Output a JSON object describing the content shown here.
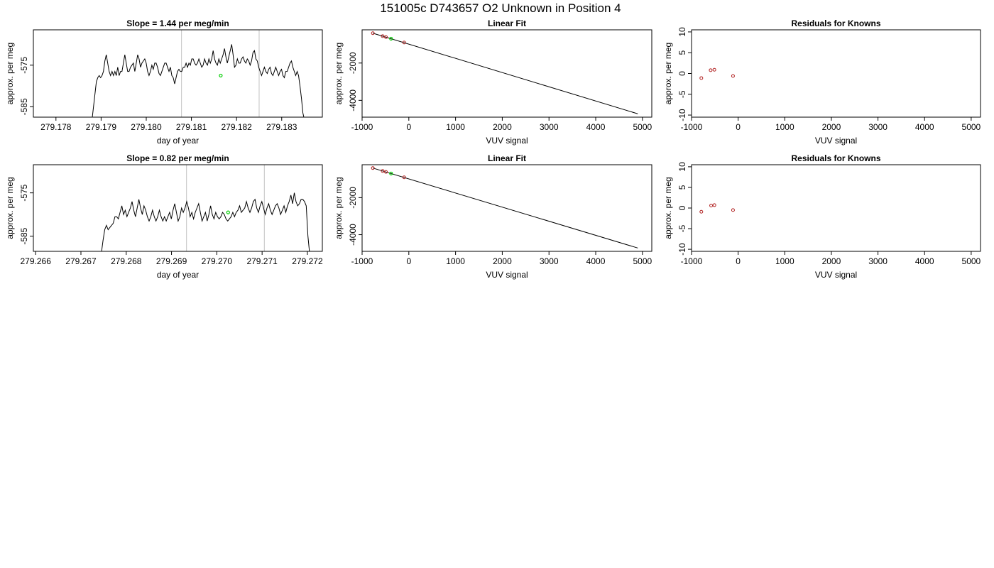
{
  "figure": {
    "title": "151005c      D743657   O2 Unknown in Position  4"
  },
  "colors": {
    "trace": "#000000",
    "marker_green": "#00cc00",
    "known_points": "#b22222",
    "cursor_lines": "#cccccc"
  },
  "chart_data": [
    {
      "type": "line",
      "title": "Slope =  1.44  per meg/min",
      "xlabel": "day of year",
      "ylabel": "approx. per meg",
      "xlim": [
        279.1775,
        279.1839
      ],
      "ylim": [
        -587.5,
        -566.5
      ],
      "xticks": [
        "279.178",
        "279.179",
        "279.180",
        "279.181",
        "279.182",
        "279.183"
      ],
      "xtick_values": [
        279.178,
        279.179,
        279.18,
        279.181,
        279.182,
        279.183
      ],
      "yticks": [
        "-575",
        "-585"
      ],
      "ytick_values": [
        -575,
        -585
      ],
      "x_start": 279.1788,
      "x_end": 279.1835,
      "y": [
        -588,
        -585,
        -582,
        -579,
        -578,
        -577.5,
        -578,
        -577.5,
        -576.5,
        -574,
        -572.5,
        -574.5,
        -576.5,
        -577.5,
        -576.5,
        -577.5,
        -576.5,
        -577.5,
        -575.5,
        -577.5,
        -576.5,
        -576.5,
        -574.5,
        -572.5,
        -574.5,
        -576.5,
        -576.5,
        -575.5,
        -575,
        -574.5,
        -576.5,
        -574.5,
        -572.5,
        -573.5,
        -575.5,
        -574.5,
        -574,
        -573.5,
        -574.5,
        -576.5,
        -577.5,
        -576.5,
        -575,
        -576,
        -574.5,
        -574.5,
        -575.5,
        -577,
        -577.5,
        -576.5,
        -575.5,
        -574.5,
        -574.5,
        -575.5,
        -576.5,
        -575.5,
        -577.5,
        -578,
        -579.5,
        -578,
        -576.5,
        -576,
        -576.5,
        -576.5,
        -575.5,
        -575.5,
        -574.5,
        -575.5,
        -574.5,
        -575,
        -573.5,
        -573.5,
        -574.5,
        -575,
        -574.5,
        -573.5,
        -574.5,
        -575.5,
        -575,
        -573.5,
        -574.5,
        -575,
        -573.5,
        -574.5,
        -573.5,
        -571.5,
        -573.5,
        -574.5,
        -575,
        -573.5,
        -574.5,
        -573.5,
        -572.5,
        -571,
        -573,
        -574.5,
        -573,
        -571.5,
        -570,
        -572.5,
        -575.5,
        -575,
        -573.5,
        -574.5,
        -574.5,
        -573.5,
        -573,
        -574,
        -574.5,
        -573.5,
        -574,
        -575,
        -574,
        -572,
        -571.5,
        -573.5,
        -574,
        -575.5,
        -576.5,
        -577.5,
        -576.5,
        -575.5,
        -576.5,
        -577,
        -576,
        -575.5,
        -577,
        -577.5,
        -576.5,
        -575.5,
        -576.5,
        -577.5,
        -576.5,
        -576,
        -577.5,
        -578,
        -576.5,
        -576.5,
        -575.5,
        -574.5,
        -574,
        -575.5,
        -576.5,
        -577.5,
        -576.5,
        -577.5,
        -580,
        -583,
        -586.5,
        -588
      ],
      "vlines": [
        279.18078,
        279.1825
      ],
      "marker": {
        "x": 279.18165,
        "y": -577.5
      }
    },
    {
      "type": "scatter",
      "title": "Linear Fit",
      "xlabel": "VUV signal",
      "ylabel": "approx. per meg",
      "xlim": [
        -1000,
        5200
      ],
      "ylim": [
        -4900,
        -220
      ],
      "xticks": [
        "-1000",
        "0",
        "1000",
        "2000",
        "3000",
        "4000",
        "5000"
      ],
      "xtick_values": [
        -1000,
        0,
        1000,
        2000,
        3000,
        4000,
        5000
      ],
      "yticks": [
        "-2000",
        "-4000"
      ],
      "ytick_values": [
        -2000,
        -4000
      ],
      "knowns": [
        {
          "x": -770,
          "y": -400
        },
        {
          "x": -560,
          "y": -558
        },
        {
          "x": -490,
          "y": -610
        },
        {
          "x": -100,
          "y": -900
        }
      ],
      "unknown": {
        "x": -380,
        "y": -695
      },
      "fit_line": [
        {
          "x": -770,
          "y": -400
        },
        {
          "x": 4900,
          "y": -4720
        }
      ]
    },
    {
      "type": "scatter",
      "title": "Residuals for Knowns",
      "xlabel": "VUV signal",
      "ylabel": "approx. per meg",
      "xlim": [
        -1000,
        5200
      ],
      "ylim": [
        -10.5,
        10.5
      ],
      "xticks": [
        "-1000",
        "0",
        "1000",
        "2000",
        "3000",
        "4000",
        "5000"
      ],
      "xtick_values": [
        -1000,
        0,
        1000,
        2000,
        3000,
        4000,
        5000
      ],
      "yticks": [
        "10",
        "5",
        "0",
        "-5",
        "-10"
      ],
      "ytick_values": [
        10,
        5,
        0,
        -5,
        -10
      ],
      "points": [
        {
          "x": -790,
          "y": -1.1
        },
        {
          "x": -590,
          "y": 0.8
        },
        {
          "x": -510,
          "y": 0.9
        },
        {
          "x": -110,
          "y": -0.6
        }
      ]
    },
    {
      "type": "line",
      "title": "Slope =  0.82  per meg/min",
      "xlabel": "day of year",
      "ylabel": "approx. per meg",
      "xlim": [
        279.26595,
        279.27233
      ],
      "ylim": [
        -588.5,
        -568.5
      ],
      "xticks": [
        "279.266",
        "279.267",
        "279.268",
        "279.269",
        "279.270",
        "279.271",
        "279.272"
      ],
      "xtick_values": [
        279.266,
        279.267,
        279.268,
        279.269,
        279.27,
        279.271,
        279.272
      ],
      "yticks": [
        "-575",
        "-585"
      ],
      "ytick_values": [
        -575,
        -585
      ],
      "x_start": 279.26745,
      "x_end": 279.27205,
      "y": [
        -589,
        -586,
        -583.5,
        -582.5,
        -583.5,
        -583,
        -582.5,
        -582,
        -580.5,
        -580.5,
        -581,
        -579.5,
        -578,
        -580,
        -579,
        -580.5,
        -579.5,
        -578.5,
        -577,
        -579,
        -580.5,
        -578.5,
        -576.5,
        -578.5,
        -580,
        -578,
        -579,
        -580.5,
        -581.5,
        -580.5,
        -579,
        -580.5,
        -581.5,
        -580.5,
        -579,
        -580.5,
        -581.5,
        -580.5,
        -581.5,
        -580.5,
        -579.5,
        -581,
        -579,
        -577.5,
        -579.5,
        -581.5,
        -580.5,
        -578.5,
        -579.5,
        -578.5,
        -577,
        -578.5,
        -580.5,
        -579.5,
        -581,
        -579.5,
        -578.5,
        -577.5,
        -579.5,
        -581.5,
        -580.5,
        -579.5,
        -581.5,
        -580,
        -578,
        -580,
        -581,
        -579.5,
        -580.5,
        -581,
        -580.5,
        -579.5,
        -580,
        -581,
        -581.5,
        -581,
        -580.5,
        -579.5,
        -580.5,
        -579.5,
        -579,
        -578,
        -579.5,
        -579,
        -578.5,
        -577,
        -578.5,
        -579.5,
        -578.5,
        -577,
        -576.5,
        -578.5,
        -579.5,
        -578,
        -577,
        -578.5,
        -580,
        -578.5,
        -577.5,
        -579,
        -580,
        -579,
        -578,
        -577.5,
        -578.5,
        -580,
        -579,
        -578,
        -579.5,
        -578,
        -577,
        -575.5,
        -577.5,
        -575,
        -577,
        -578,
        -577.5,
        -576.5,
        -576.5,
        -577,
        -578,
        -585,
        -589
      ],
      "vlines": [
        279.26933,
        279.27105
      ],
      "marker": {
        "x": 279.27025,
        "y": -579.5
      }
    },
    {
      "type": "scatter",
      "title": "Linear Fit",
      "xlabel": "VUV signal",
      "ylabel": "approx. per meg",
      "xlim": [
        -1000,
        5200
      ],
      "ylim": [
        -4900,
        -220
      ],
      "xticks": [
        "-1000",
        "0",
        "1000",
        "2000",
        "3000",
        "4000",
        "5000"
      ],
      "xtick_values": [
        -1000,
        0,
        1000,
        2000,
        3000,
        4000,
        5000
      ],
      "yticks": [
        "-2000",
        "-4000"
      ],
      "ytick_values": [
        -2000,
        -4000
      ],
      "knowns": [
        {
          "x": -770,
          "y": -400
        },
        {
          "x": -560,
          "y": -558
        },
        {
          "x": -490,
          "y": -610
        },
        {
          "x": -100,
          "y": -900
        }
      ],
      "unknown": {
        "x": -380,
        "y": -695
      },
      "fit_line": [
        {
          "x": -770,
          "y": -400
        },
        {
          "x": 4900,
          "y": -4720
        }
      ]
    },
    {
      "type": "scatter",
      "title": "Residuals for Knowns",
      "xlabel": "VUV signal",
      "ylabel": "approx. per meg",
      "xlim": [
        -1000,
        5200
      ],
      "ylim": [
        -10.5,
        10.5
      ],
      "xticks": [
        "-1000",
        "0",
        "1000",
        "2000",
        "3000",
        "4000",
        "5000"
      ],
      "xtick_values": [
        -1000,
        0,
        1000,
        2000,
        3000,
        4000,
        5000
      ],
      "yticks": [
        "10",
        "5",
        "0",
        "-5",
        "-10"
      ],
      "ytick_values": [
        10,
        5,
        0,
        -5,
        -10
      ],
      "points": [
        {
          "x": -790,
          "y": -0.9
        },
        {
          "x": -580,
          "y": 0.6
        },
        {
          "x": -510,
          "y": 0.7
        },
        {
          "x": -110,
          "y": -0.5
        }
      ]
    }
  ]
}
